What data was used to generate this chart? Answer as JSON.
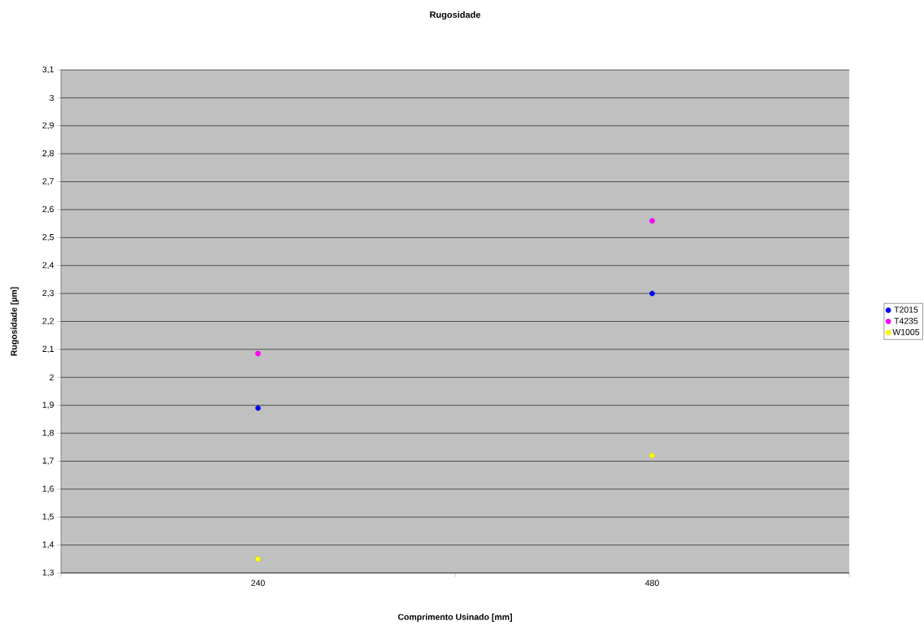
{
  "chart_data": {
    "type": "scatter",
    "title": "Rugosidade",
    "xlabel": "Comprimento Usinado [mm]",
    "ylabel": "Rugosidade [µm]",
    "categories": [
      "240",
      "480"
    ],
    "series": [
      {
        "name": "T2015",
        "color": "#0000ff",
        "values": [
          1.89,
          2.3
        ]
      },
      {
        "name": "T4235",
        "color": "#ff00ff",
        "values": [
          2.085,
          2.56
        ]
      },
      {
        "name": "W1005",
        "color": "#ffff00",
        "values": [
          1.35,
          1.72
        ]
      }
    ],
    "ylim": [
      1.3,
      3.1
    ],
    "yticks": [
      {
        "value": 1.3,
        "label": "1,3"
      },
      {
        "value": 1.4,
        "label": "1,4"
      },
      {
        "value": 1.5,
        "label": "1,5"
      },
      {
        "value": 1.6,
        "label": "1,6"
      },
      {
        "value": 1.7,
        "label": "1,7"
      },
      {
        "value": 1.8,
        "label": "1,8"
      },
      {
        "value": 1.9,
        "label": "1,9"
      },
      2,
      {
        "value": 2.1,
        "label": "2,1"
      },
      {
        "value": 2.2,
        "label": "2,2"
      },
      {
        "value": 2.3,
        "label": "2,3"
      },
      {
        "value": 2.4,
        "label": "2,4"
      },
      {
        "value": 2.5,
        "label": "2,5"
      },
      {
        "value": 2.6,
        "label": "2,6"
      },
      {
        "value": 2.7,
        "label": "2,7"
      },
      {
        "value": 2.8,
        "label": "2,8"
      },
      {
        "value": 2.9,
        "label": "2,9"
      },
      3,
      {
        "value": 3.1,
        "label": "3,1"
      }
    ],
    "grid": "y",
    "legend": "right",
    "marker": "circle"
  }
}
